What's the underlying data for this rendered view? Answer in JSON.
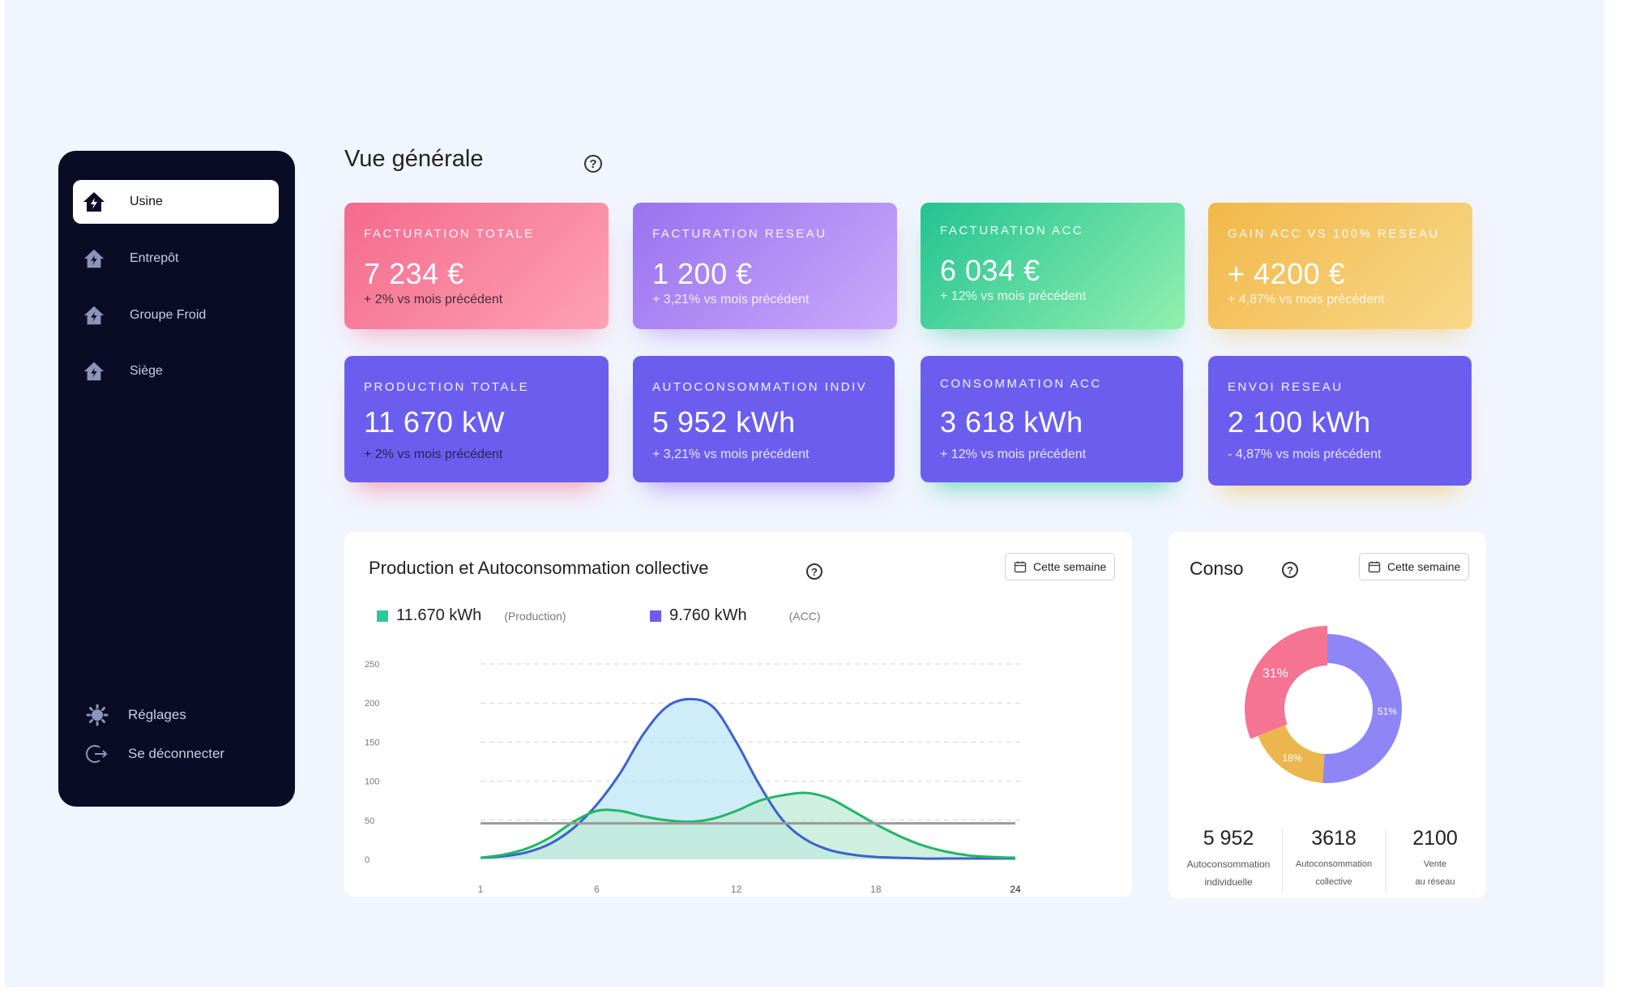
{
  "sidebar": {
    "items": [
      {
        "label": "Usine",
        "active": true
      },
      {
        "label": "Entrepôt",
        "active": false
      },
      {
        "label": "Groupe Froid",
        "active": false
      },
      {
        "label": "Siège",
        "active": false
      }
    ],
    "settings_label": "Réglages",
    "logout_label": "Se déconnecter"
  },
  "header": {
    "title": "Vue générale",
    "help": "?"
  },
  "kpi_top": [
    {
      "label": "FACTURATION TOTALE",
      "value": "7 234 €",
      "delta": "+ 2% vs mois précédent"
    },
    {
      "label": "FACTURATION RESEAU",
      "value": "1 200 €",
      "delta": "+ 3,21% vs mois précédent"
    },
    {
      "label": "FACTURATION ACC",
      "value": "6 034 €",
      "delta": "+ 12% vs mois précédent"
    },
    {
      "label": "GAIN ACC VS 100% RESEAU",
      "value": "+ 4200 €",
      "delta": "+ 4,87% vs mois précédent"
    }
  ],
  "kpi_bottom": [
    {
      "label": "PRODUCTION TOTALE",
      "value": "11 670 kW",
      "delta": "+ 2% vs mois précédent"
    },
    {
      "label": "AUTOCONSOMMATION INDIV",
      "value": "5 952 kWh",
      "delta": "+ 3,21% vs mois précédent"
    },
    {
      "label": "CONSOMMATION ACC",
      "value": "3 618 kWh",
      "delta": "+ 12% vs mois précédent"
    },
    {
      "label": "ENVOI RESEAU",
      "value": "2 100 kWh",
      "delta": "- 4,87% vs mois précédent"
    }
  ],
  "production_panel": {
    "title": "Production et Autoconsommation collective",
    "help": "?",
    "period_button": "Cette semaine",
    "legend": [
      {
        "value": "11.670 kWh",
        "sub": "(Production)",
        "color": "#2ec999"
      },
      {
        "value": "9.760 kWh",
        "sub": "(ACC)",
        "color": "#6b5eef"
      }
    ]
  },
  "conso_panel": {
    "title": "Conso",
    "help": "?",
    "period_button": "Cette semaine",
    "stats": [
      {
        "value": "5 952",
        "caption1": "Autoconsommation",
        "caption2": "individuelle"
      },
      {
        "value": "3618",
        "caption1": "Autoconsommation",
        "caption2": "collective"
      },
      {
        "value": "2100",
        "caption1": "Vente",
        "caption2": "au réseau"
      }
    ]
  },
  "chart_data": [
    {
      "type": "area",
      "x": [
        1,
        2,
        3,
        4,
        5,
        6,
        7,
        8,
        9,
        10,
        11,
        12,
        13,
        14,
        15,
        16,
        17,
        18,
        19,
        20,
        21,
        22,
        23,
        24
      ],
      "xticks": [
        "1",
        "6",
        "12",
        "18",
        "24"
      ],
      "yticks": [
        "0",
        "50",
        "100",
        "150",
        "200",
        "250"
      ],
      "ylim": [
        0,
        250
      ],
      "grid": true,
      "series": [
        {
          "color": "#3c62cc",
          "fill": "#bfe6f7",
          "values": [
            2,
            4,
            9,
            20,
            40,
            70,
            110,
            160,
            195,
            205,
            195,
            150,
            95,
            50,
            25,
            12,
            6,
            3,
            2,
            1,
            1,
            1,
            1,
            1
          ]
        },
        {
          "color": "#1fb765",
          "fill": "#bfead5",
          "values": [
            2,
            6,
            14,
            28,
            48,
            62,
            62,
            55,
            50,
            48,
            52,
            62,
            75,
            82,
            85,
            78,
            62,
            45,
            30,
            18,
            10,
            5,
            3,
            2
          ]
        },
        {
          "color": "#9a9a9a",
          "fill": "none",
          "values": [
            46,
            46,
            46,
            46,
            46,
            46,
            46,
            46,
            46,
            46,
            46,
            46,
            46,
            46,
            46,
            46,
            46,
            46,
            46,
            46,
            46,
            46,
            46,
            46
          ]
        }
      ]
    },
    {
      "type": "pie",
      "slices": [
        {
          "label": "31%",
          "value": 31,
          "color": "#f57393"
        },
        {
          "label": "18%",
          "value": 18,
          "color": "#ebb64d"
        },
        {
          "label": "51%",
          "value": 51,
          "color": "#8e86f6"
        }
      ]
    }
  ]
}
